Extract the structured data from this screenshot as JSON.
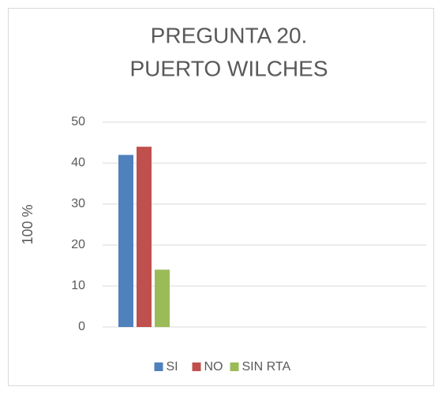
{
  "chart_data": {
    "type": "bar",
    "title": [
      "PREGUNTA 20.",
      "PUERTO WILCHES"
    ],
    "ylabel": "100 %",
    "categories": [
      null
    ],
    "series": [
      {
        "name": "SI",
        "color": "#4f81bd",
        "values": [
          42
        ]
      },
      {
        "name": "NO",
        "color": "#c0504d",
        "values": [
          44
        ]
      },
      {
        "name": "SIN RTA",
        "color": "#9bbb59",
        "values": [
          14
        ]
      }
    ],
    "ylim": [
      0,
      50
    ],
    "yticks": [
      0,
      10,
      20,
      30,
      40,
      50
    ],
    "grid": true,
    "legend": "bottom"
  }
}
